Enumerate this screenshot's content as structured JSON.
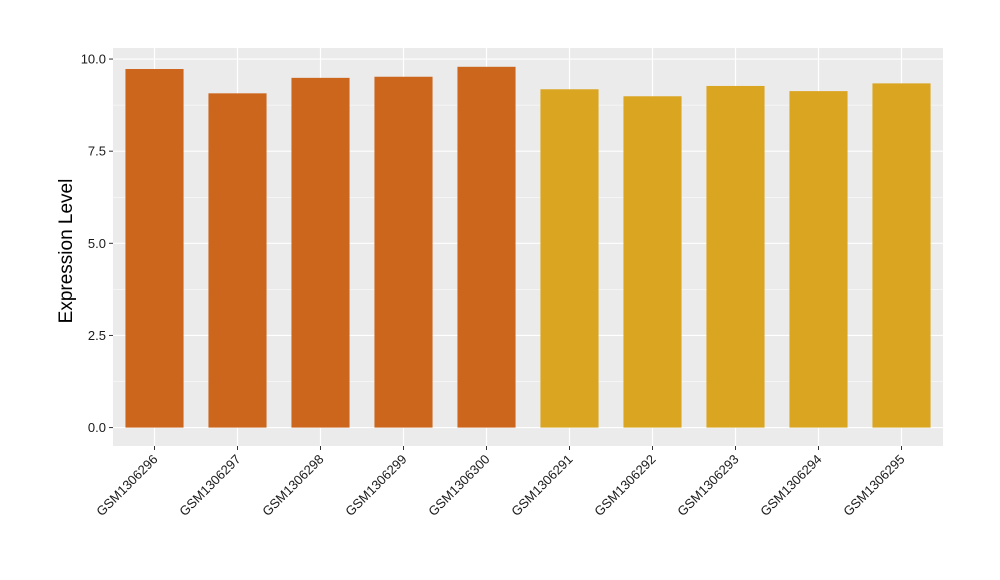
{
  "chart_data": {
    "type": "bar",
    "title": "",
    "xlabel": "",
    "ylabel": "Expression Level",
    "categories": [
      "GSM1306296",
      "GSM1306297",
      "GSM1306298",
      "GSM1306299",
      "GSM1306300",
      "GSM1306291",
      "GSM1306292",
      "GSM1306293",
      "GSM1306294",
      "GSM1306295"
    ],
    "values": [
      9.73,
      9.07,
      9.49,
      9.52,
      9.79,
      9.18,
      8.99,
      9.27,
      9.13,
      9.34
    ],
    "bar_colors": [
      "#cd661d",
      "#cd661d",
      "#cd661d",
      "#cd661d",
      "#cd661d",
      "#daa520",
      "#daa520",
      "#daa520",
      "#daa520",
      "#daa520"
    ],
    "ylim": [
      -0.5,
      10.3
    ],
    "yticks": [
      0,
      2.5,
      5,
      7.5,
      10
    ],
    "ytick_labels": [
      "0.0",
      "2.5",
      "5.0",
      "7.5",
      "10.0"
    ],
    "grid": true,
    "legend": "none",
    "panel_background": "#ebebeb",
    "grid_color": "#ffffff"
  }
}
